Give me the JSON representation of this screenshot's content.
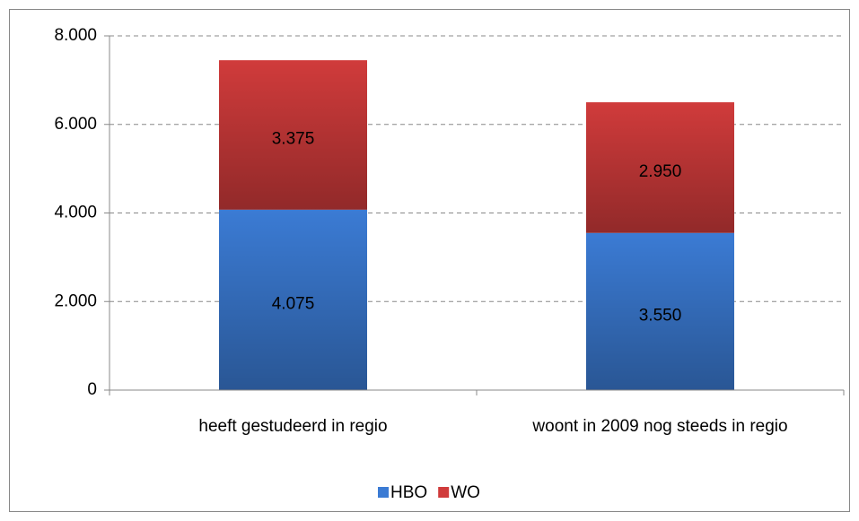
{
  "chart_data": {
    "type": "stacked_bar",
    "categories": [
      "heeft gestudeerd in regio",
      "woont in 2009 nog steeds in regio"
    ],
    "series": [
      {
        "name": "HBO",
        "color": "#3b7bd4",
        "values": [
          4075,
          3550
        ],
        "value_labels": [
          "4.075",
          "3.550"
        ]
      },
      {
        "name": "WO",
        "color": "#d03b3b",
        "values": [
          3375,
          2950
        ],
        "value_labels": [
          "3.375",
          "2.950"
        ]
      }
    ],
    "ylim": [
      0,
      8000
    ],
    "yticks": [
      0,
      {
        "value": 2000,
        "label": "2.000"
      },
      {
        "value": 4000,
        "label": "4.000"
      },
      {
        "value": 6000,
        "label": "6.000"
      },
      {
        "value": 8000,
        "label": "8.000"
      }
    ],
    "grid": true,
    "legend": "bottom"
  }
}
